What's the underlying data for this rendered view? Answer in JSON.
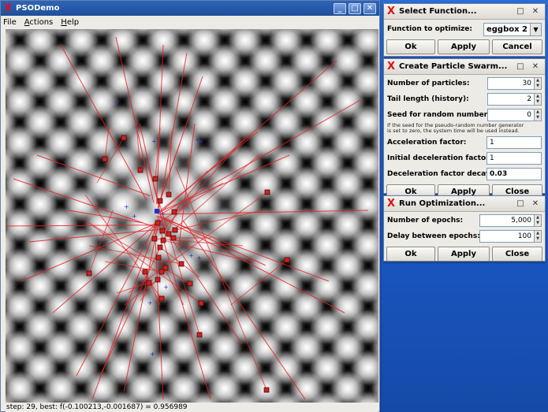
{
  "main_window": {
    "title": "PSODemo",
    "menu": [
      {
        "label": "File",
        "underline": ""
      },
      {
        "label": "Actions",
        "underline": "A"
      },
      {
        "label": "Help",
        "underline": "H"
      }
    ],
    "status": "step: 29, best: f(-0.100213,-0.001687) = 0.956989"
  },
  "select_function": {
    "title": "Select Function...",
    "label": "Function to optimize:",
    "value": "eggbox 2",
    "buttons": [
      "Ok",
      "Apply",
      "Cancel"
    ]
  },
  "create_swarm": {
    "title": "Create Particle Swarm...",
    "fields": [
      {
        "label": "Number of particles:",
        "value": "30"
      },
      {
        "label": "Tail length (history):",
        "value": "2"
      },
      {
        "label": "Seed for random numbers:",
        "value": "0"
      }
    ],
    "note_line1": "If the seed for the pseudo-random number generator",
    "note_line2": "is set to zero, the system time will be used instead.",
    "text_fields": [
      {
        "label": "Acceleration factor:",
        "value": "1"
      },
      {
        "label": "Initial deceleration factor:",
        "value": "1"
      },
      {
        "label": "Deceleration factor decay:",
        "value": "0.03"
      }
    ],
    "buttons": [
      "Ok",
      "Apply",
      "Close"
    ]
  },
  "run_optimization": {
    "title": "Run Optimization...",
    "fields": [
      {
        "label": "Number of epochs:",
        "value": "5,000"
      },
      {
        "label": "Delay between epochs:",
        "value": "100"
      }
    ],
    "buttons": [
      "Ok",
      "Apply",
      "Close"
    ]
  },
  "colors": {
    "accent": "#1e4f9a",
    "particle": "#cc2222",
    "trail": "#e82020",
    "best": "#2233cc"
  }
}
